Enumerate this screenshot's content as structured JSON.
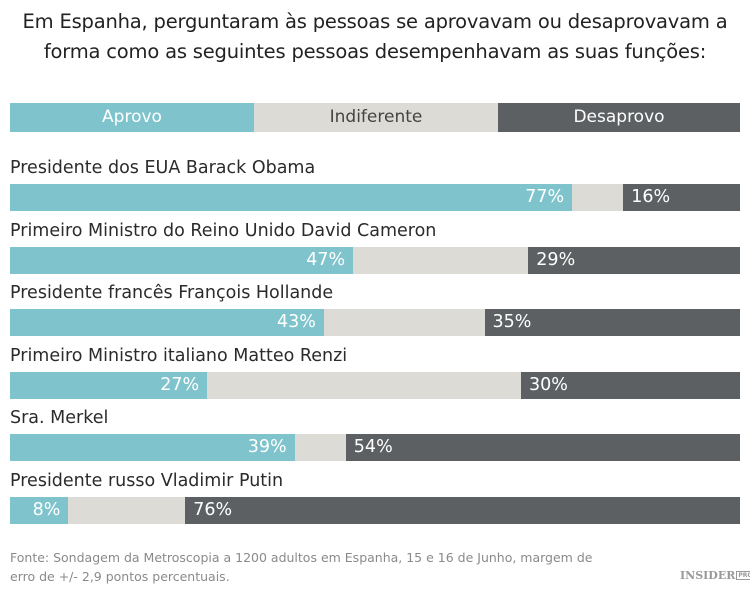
{
  "title_lines": [
    "Em Espanha, perguntaram às pessoas se aprovavam ou desaprovavam a",
    "forma como as seguintes pessoas desempenhavam as suas funções:"
  ],
  "legend": [
    "Aprovo",
    "Indiferente",
    "Desaprovo"
  ],
  "colors": {
    "approve": "#7fc4cc",
    "neutral": "#dcdbd6",
    "disapprove": "#5d6062"
  },
  "chart_data": {
    "type": "bar",
    "orientation": "horizontal-stacked-100",
    "categories": [
      "Presidente dos EUA Barack Obama",
      "Primeiro Ministro do Reino Unido David Cameron",
      "Presidente francês François Hollande",
      "Primeiro Ministro italiano Matteo Renzi",
      "Sra. Merkel",
      "Presidente russo Vladimir Putin"
    ],
    "series": [
      {
        "name": "Aprovo",
        "values": [
          77,
          47,
          43,
          27,
          39,
          8
        ]
      },
      {
        "name": "Desaprovo",
        "values": [
          16,
          29,
          35,
          30,
          54,
          76
        ]
      }
    ],
    "xlim": [
      0,
      100
    ],
    "legend_position": "top"
  },
  "footer_lines": [
    "Fonte: Sondagem da Metroscopia a 1200 adultos em Espanha, 15 e 16 de Junho, margem de",
    "erro de +/- 2,9 pontos percentuais."
  ],
  "logo": {
    "text": "INSIDER",
    "badge": "PRO"
  }
}
